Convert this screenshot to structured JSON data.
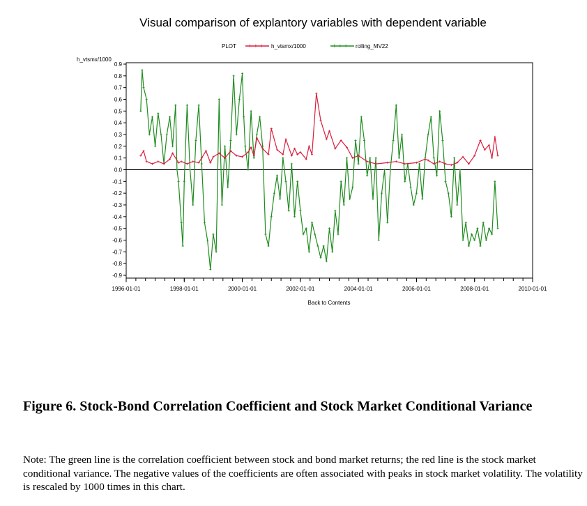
{
  "figure": {
    "caption": "Figure 6.  Stock-Bond Correlation Coefficient and Stock Market Conditional Variance",
    "note": "Note: The green line is the correlation coefficient between stock and bond market returns; the red line is the stock market conditional variance. The negative values of the coefficients are often associated with peaks in stock market volatility. The volatility is rescaled by 1000 times in this chart."
  },
  "colors": {
    "red": "#d81e3c",
    "green": "#1e8c1e",
    "axis": "#000000"
  },
  "chart_data": {
    "type": "line",
    "title": "Visual comparison of explantory variables with dependent variable",
    "ylabel": "h_vtsmx/1000",
    "xlabel": "Back to Contents",
    "legend_title": "PLOT",
    "legend_position": "top-center",
    "ylim": [
      -0.9,
      0.9
    ],
    "xlim": [
      1996.0,
      2010.0
    ],
    "yticks": [
      "0.9",
      "0.8",
      "0.7",
      "0.6",
      "0.5",
      "0.4",
      "0.3",
      "0.2",
      "0.1",
      "0.0",
      "-0.1",
      "-0.2",
      "-0.3",
      "-0.4",
      "-0.5",
      "-0.6",
      "-0.7",
      "-0.8",
      "-0.9"
    ],
    "xticks": [
      {
        "x": 1996.0,
        "label": "1996-01-01"
      },
      {
        "x": 1998.0,
        "label": "1998-01-01"
      },
      {
        "x": 2000.0,
        "label": "2000-01-01"
      },
      {
        "x": 2002.0,
        "label": "2002-01-01"
      },
      {
        "x": 2004.0,
        "label": "2004-01-01"
      },
      {
        "x": 2006.0,
        "label": "2006-01-01"
      },
      {
        "x": 2008.0,
        "label": "2008-01-01"
      },
      {
        "x": 2010.0,
        "label": "2010-01-01"
      }
    ],
    "reference_line": 0.0,
    "series": [
      {
        "name": "h_vtsmx/1000",
        "color": "#d81e3c",
        "x": [
          1996.5,
          1996.6,
          1996.7,
          1996.9,
          1997.1,
          1997.3,
          1997.5,
          1997.6,
          1997.8,
          1997.9,
          1998.1,
          1998.3,
          1998.5,
          1998.6,
          1998.75,
          1998.9,
          1999.0,
          1999.2,
          1999.4,
          1999.6,
          1999.8,
          2000.0,
          2000.2,
          2000.3,
          2000.4,
          2000.5,
          2000.7,
          2000.9,
          2001.0,
          2001.2,
          2001.4,
          2001.5,
          2001.7,
          2001.8,
          2001.9,
          2002.0,
          2002.2,
          2002.3,
          2002.4,
          2002.55,
          2002.7,
          2002.9,
          2003.0,
          2003.2,
          2003.4,
          2003.6,
          2003.8,
          2004.0,
          2004.3,
          2004.6,
          2005.0,
          2005.3,
          2005.6,
          2006.0,
          2006.3,
          2006.4,
          2006.6,
          2006.8,
          2007.0,
          2007.2,
          2007.4,
          2007.6,
          2007.8,
          2008.0,
          2008.2,
          2008.35,
          2008.5,
          2008.6,
          2008.7,
          2008.8
        ],
        "values": [
          0.12,
          0.16,
          0.07,
          0.05,
          0.07,
          0.05,
          0.09,
          0.14,
          0.06,
          0.07,
          0.05,
          0.07,
          0.06,
          0.1,
          0.16,
          0.06,
          0.11,
          0.14,
          0.1,
          0.16,
          0.12,
          0.11,
          0.15,
          0.19,
          0.12,
          0.27,
          0.18,
          0.13,
          0.35,
          0.17,
          0.13,
          0.26,
          0.12,
          0.18,
          0.13,
          0.15,
          0.09,
          0.2,
          0.13,
          0.65,
          0.42,
          0.26,
          0.33,
          0.18,
          0.25,
          0.19,
          0.1,
          0.12,
          0.07,
          0.05,
          0.06,
          0.07,
          0.05,
          0.06,
          0.09,
          0.08,
          0.05,
          0.07,
          0.05,
          0.04,
          0.06,
          0.11,
          0.05,
          0.12,
          0.25,
          0.17,
          0.21,
          0.1,
          0.28,
          0.12
        ]
      },
      {
        "name": "rolling_MV22",
        "color": "#1e8c1e",
        "x": [
          1996.5,
          1996.55,
          1996.6,
          1996.7,
          1996.8,
          1996.9,
          1997.0,
          1997.1,
          1997.2,
          1997.3,
          1997.4,
          1997.5,
          1997.6,
          1997.7,
          1997.75,
          1997.8,
          1997.9,
          1997.95,
          1998.0,
          1998.1,
          1998.2,
          1998.3,
          1998.4,
          1998.5,
          1998.6,
          1998.7,
          1998.8,
          1998.9,
          1999.0,
          1999.1,
          1999.2,
          1999.3,
          1999.4,
          1999.5,
          1999.6,
          1999.7,
          1999.8,
          1999.9,
          2000.0,
          2000.05,
          2000.1,
          2000.2,
          2000.3,
          2000.4,
          2000.5,
          2000.6,
          2000.7,
          2000.8,
          2000.9,
          2001.0,
          2001.1,
          2001.2,
          2001.3,
          2001.4,
          2001.5,
          2001.6,
          2001.7,
          2001.8,
          2001.9,
          2002.0,
          2002.1,
          2002.2,
          2002.3,
          2002.4,
          2002.5,
          2002.6,
          2002.7,
          2002.8,
          2002.9,
          2003.0,
          2003.1,
          2003.2,
          2003.3,
          2003.4,
          2003.5,
          2003.6,
          2003.7,
          2003.8,
          2003.9,
          2004.0,
          2004.1,
          2004.2,
          2004.3,
          2004.4,
          2004.5,
          2004.6,
          2004.7,
          2004.8,
          2004.9,
          2005.0,
          2005.1,
          2005.2,
          2005.3,
          2005.4,
          2005.5,
          2005.6,
          2005.7,
          2005.8,
          2005.9,
          2006.0,
          2006.1,
          2006.2,
          2006.3,
          2006.4,
          2006.5,
          2006.6,
          2006.7,
          2006.8,
          2006.9,
          2007.0,
          2007.1,
          2007.2,
          2007.3,
          2007.4,
          2007.5,
          2007.6,
          2007.7,
          2007.8,
          2007.9,
          2008.0,
          2008.1,
          2008.2,
          2008.3,
          2008.4,
          2008.5,
          2008.6,
          2008.7,
          2008.8
        ],
        "values": [
          0.5,
          0.85,
          0.7,
          0.6,
          0.3,
          0.45,
          0.2,
          0.48,
          0.3,
          0.05,
          0.3,
          0.45,
          0.2,
          0.55,
          0.0,
          -0.1,
          -0.45,
          -0.65,
          -0.1,
          0.55,
          0.0,
          -0.3,
          0.25,
          0.55,
          0.05,
          -0.45,
          -0.6,
          -0.85,
          -0.55,
          -0.7,
          0.6,
          -0.3,
          0.2,
          -0.15,
          0.25,
          0.8,
          0.3,
          0.6,
          0.82,
          0.45,
          0.2,
          0.0,
          0.5,
          0.1,
          0.3,
          0.45,
          0.2,
          -0.55,
          -0.65,
          -0.4,
          -0.2,
          -0.05,
          -0.25,
          0.1,
          -0.1,
          -0.35,
          0.05,
          -0.4,
          -0.1,
          -0.35,
          -0.55,
          -0.5,
          -0.7,
          -0.45,
          -0.55,
          -0.65,
          -0.75,
          -0.65,
          -0.78,
          -0.5,
          -0.7,
          -0.35,
          -0.55,
          -0.1,
          -0.3,
          0.1,
          -0.25,
          -0.15,
          0.25,
          0.05,
          0.45,
          0.25,
          -0.05,
          0.1,
          -0.25,
          0.1,
          -0.6,
          -0.2,
          0.0,
          -0.45,
          0.0,
          0.25,
          0.55,
          0.1,
          0.3,
          -0.1,
          0.05,
          -0.15,
          -0.3,
          -0.2,
          0.05,
          -0.25,
          0.1,
          0.3,
          0.45,
          0.1,
          -0.05,
          0.5,
          0.25,
          -0.1,
          -0.2,
          -0.4,
          0.1,
          -0.3,
          0.0,
          -0.6,
          -0.45,
          -0.65,
          -0.55,
          -0.6,
          -0.5,
          -0.65,
          -0.45,
          -0.6,
          -0.5,
          -0.55,
          -0.1,
          -0.5
        ]
      }
    ]
  }
}
